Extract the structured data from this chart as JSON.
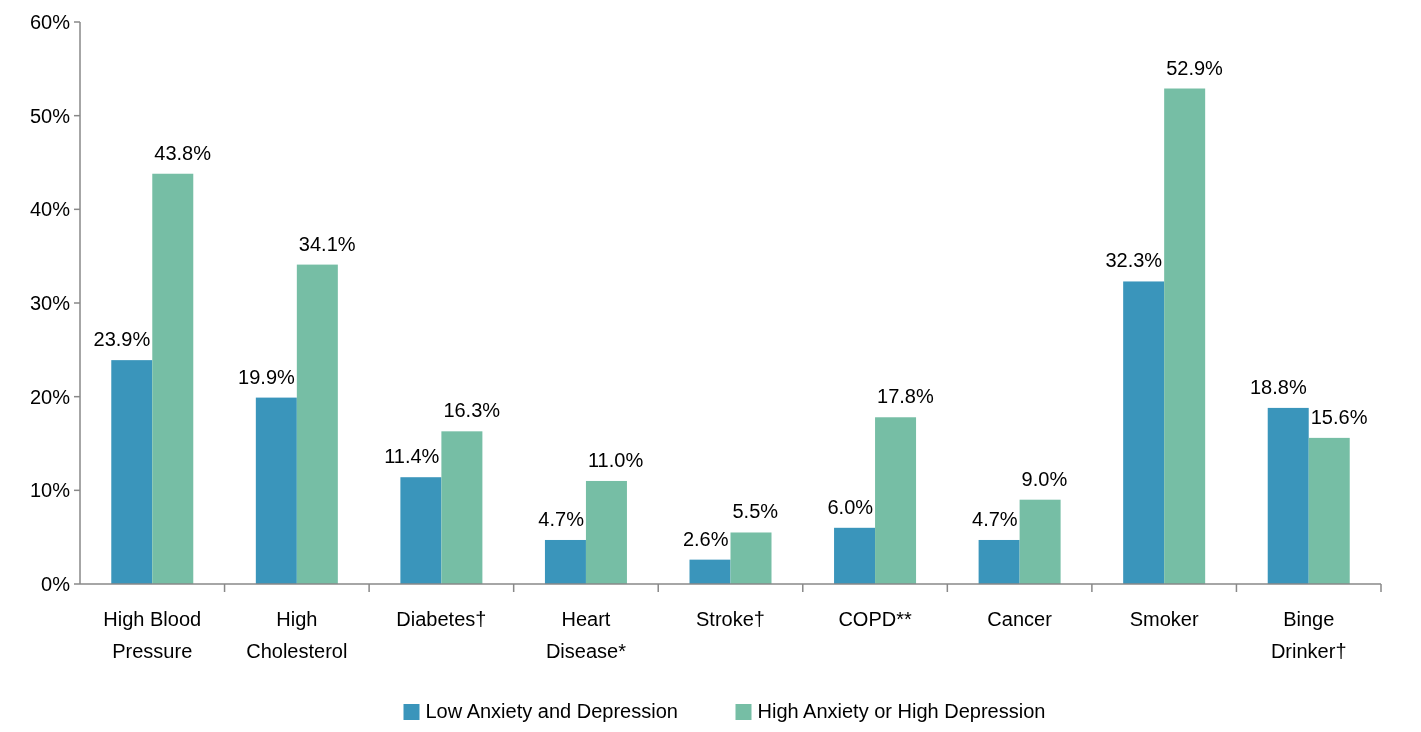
{
  "chart_data": {
    "type": "bar",
    "categories": [
      "High Blood Pressure",
      "High Cholesterol",
      "Diabetes†",
      "Heart Disease*",
      "Stroke†",
      "COPD**",
      "Cancer",
      "Smoker",
      "Binge Drinker†"
    ],
    "series": [
      {
        "name": "Low Anxiety and Depression",
        "color": "#3a95bb",
        "values": [
          23.9,
          19.9,
          11.4,
          4.7,
          2.6,
          6.0,
          4.7,
          32.3,
          18.8
        ],
        "value_labels": [
          "23.9%",
          "19.9%",
          "11.4%",
          "4.7%",
          "2.6%",
          "6.0%",
          "4.7%",
          "32.3%",
          "18.8%"
        ]
      },
      {
        "name": "High Anxiety or High Depression",
        "color": "#76bea5",
        "values": [
          43.8,
          34.1,
          16.3,
          11.0,
          5.5,
          17.8,
          9.0,
          52.9,
          15.6
        ],
        "value_labels": [
          "43.8%",
          "34.1%",
          "16.3%",
          "11.0%",
          "5.5%",
          "17.8%",
          "9.0%",
          "52.9%",
          "15.6%"
        ]
      }
    ],
    "ylim": [
      0,
      60
    ],
    "yticks": [
      {
        "value": 0,
        "label": "0%"
      },
      {
        "value": 10,
        "label": "10%"
      },
      {
        "value": 20,
        "label": "20%"
      },
      {
        "value": 30,
        "label": "30%"
      },
      {
        "value": 40,
        "label": "40%"
      },
      {
        "value": 50,
        "label": "50%"
      },
      {
        "value": 60,
        "label": "60%"
      }
    ],
    "grid": false,
    "legend": "bottom"
  }
}
